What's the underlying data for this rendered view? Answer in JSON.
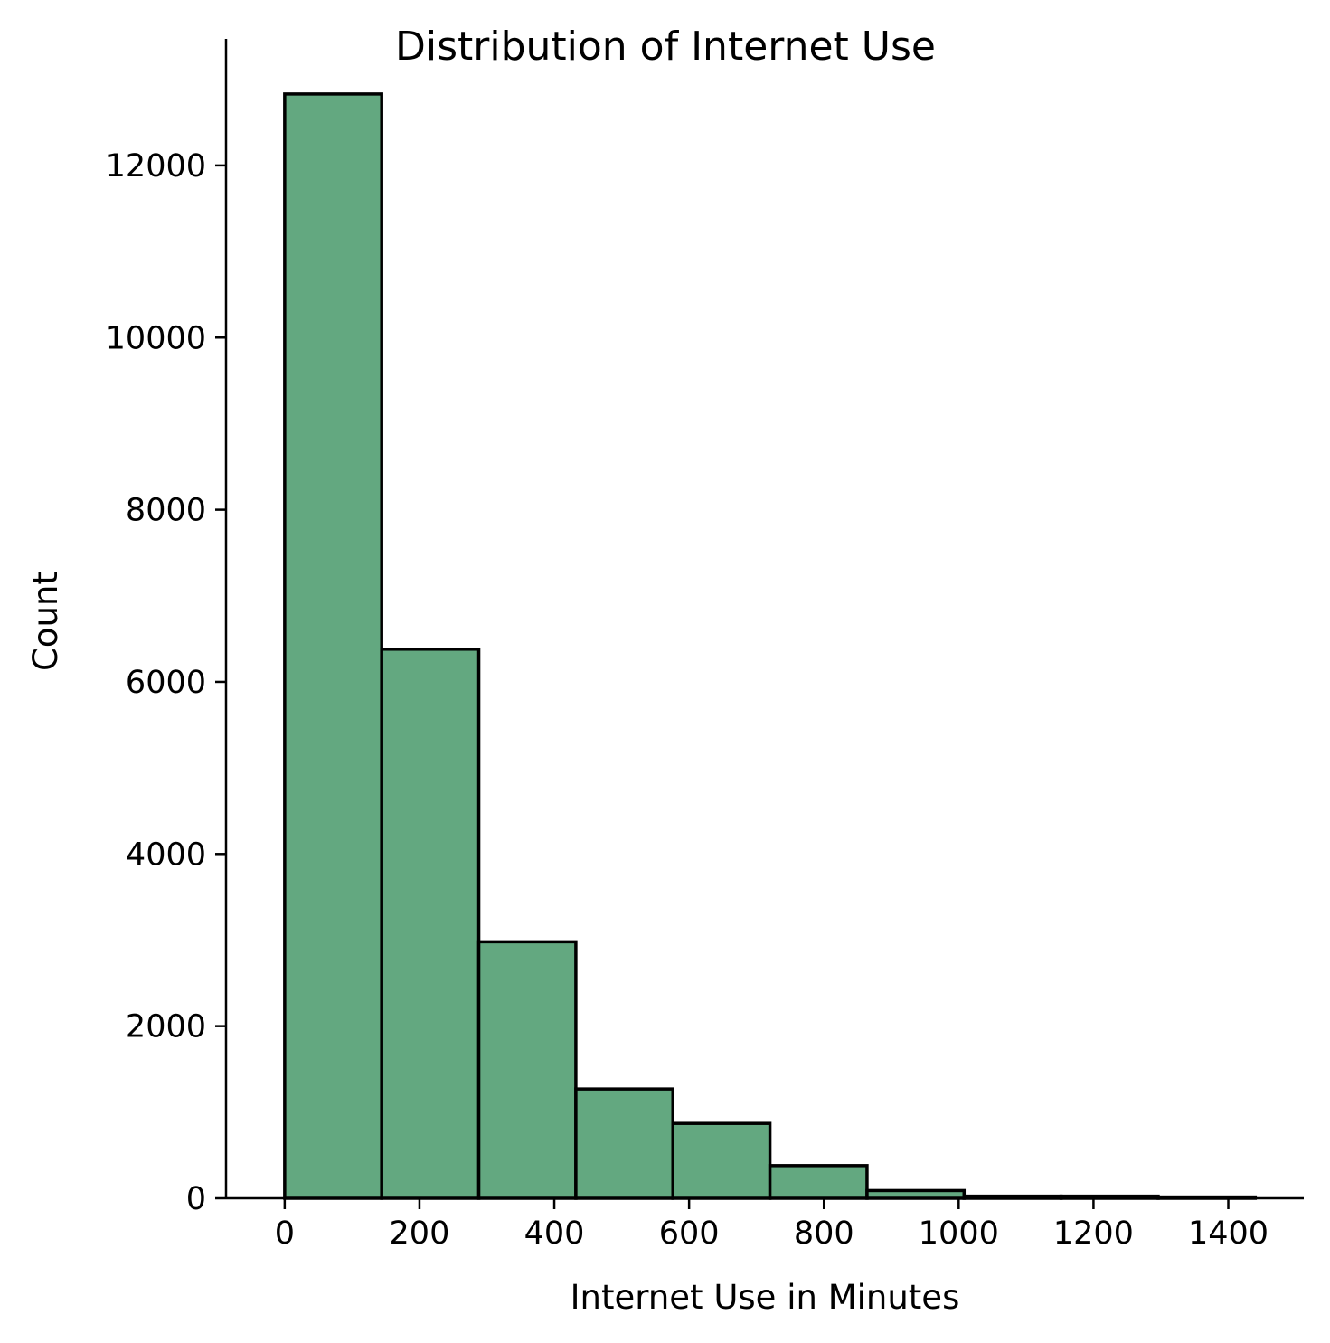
{
  "chart_data": {
    "type": "bar",
    "title": "Distribution of Internet Use",
    "xlabel": "Internet Use in Minutes",
    "ylabel": "Count",
    "bin_edges": [
      0,
      144,
      288,
      432,
      576,
      720,
      864,
      1008,
      1152,
      1296,
      1440
    ],
    "values": [
      12830,
      6380,
      2980,
      1270,
      870,
      380,
      90,
      25,
      25,
      15
    ],
    "xticks": [
      0,
      200,
      400,
      600,
      800,
      1000,
      1200,
      1400
    ],
    "yticks": [
      0,
      2000,
      4000,
      6000,
      8000,
      10000,
      12000
    ],
    "xlim": [
      -87,
      1512
    ],
    "ylim": [
      0,
      13470
    ],
    "bar_color": "#63a880",
    "edge_color": "#000000",
    "grid": false,
    "legend": false
  }
}
